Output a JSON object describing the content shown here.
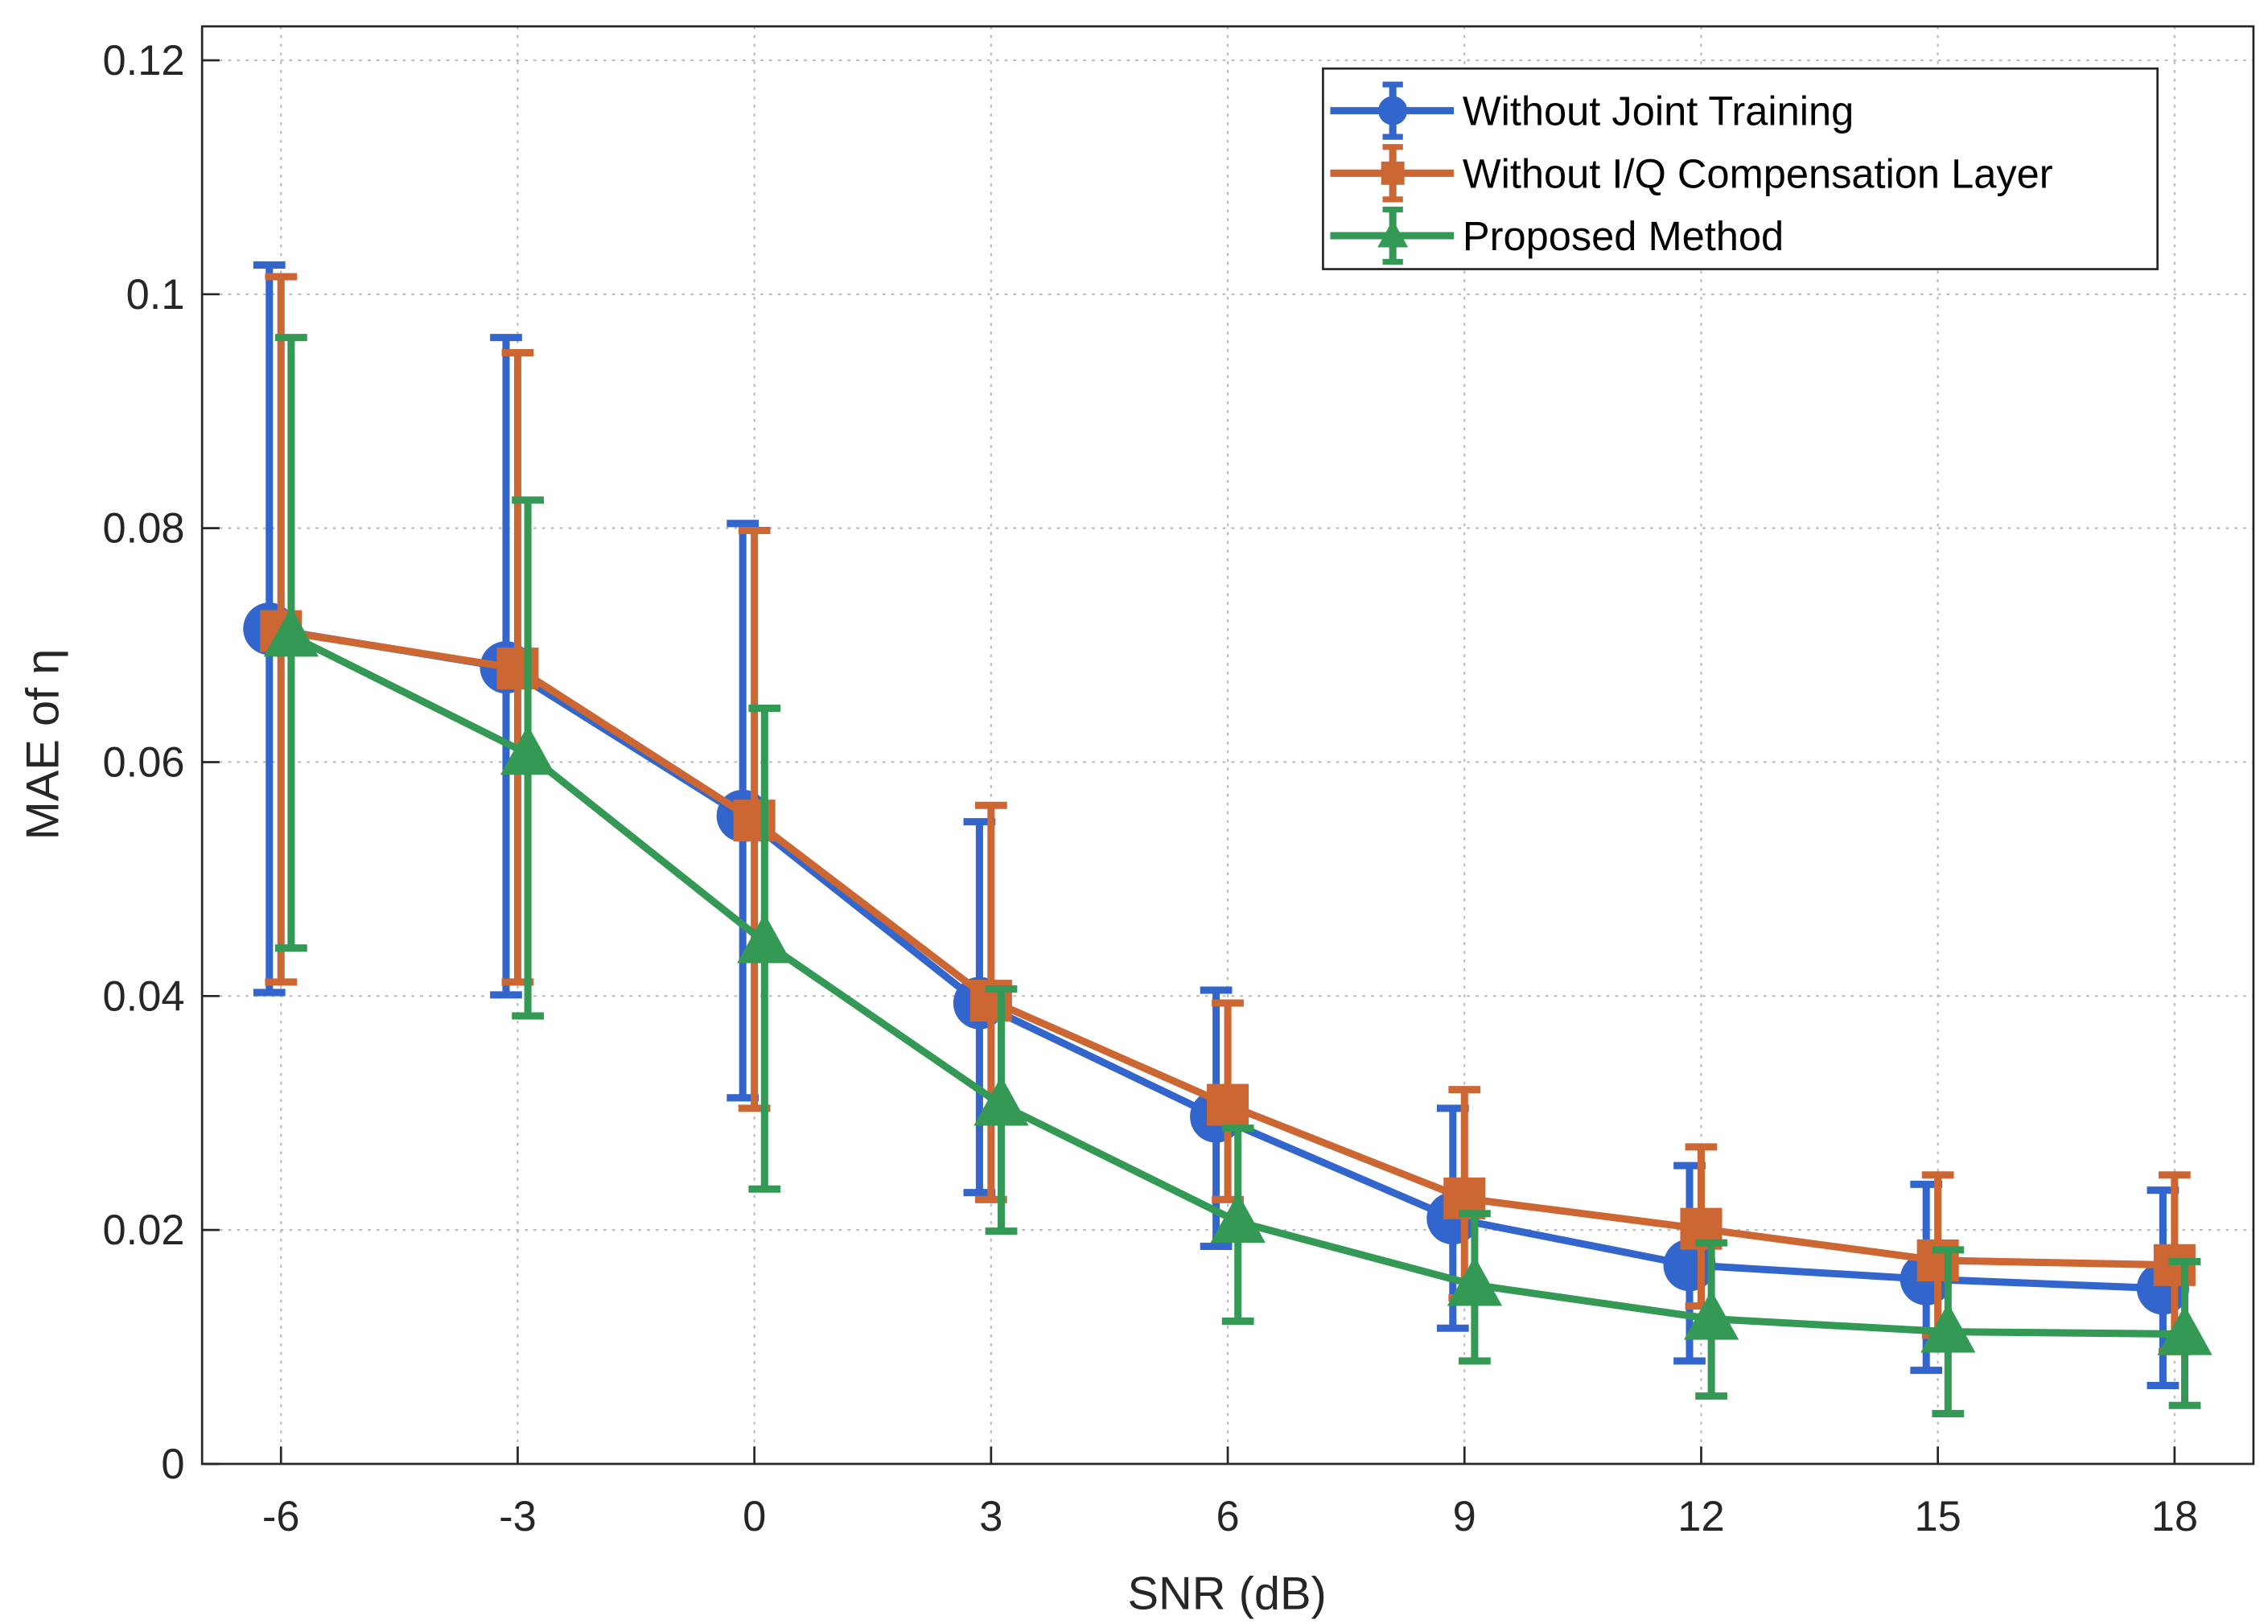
{
  "chart_data": {
    "type": "line",
    "title": "",
    "xlabel": "SNR (dB)",
    "ylabel": "MAE of η",
    "xlim": [
      -7,
      19
    ],
    "ylim": [
      0,
      0.1229
    ],
    "grid": true,
    "legend_position": "top-right",
    "x": [
      -6,
      -3,
      0,
      3,
      6,
      9,
      12,
      15,
      18
    ],
    "xticks": [
      "-6",
      "-3",
      "0",
      "3",
      "6",
      "9",
      "12",
      "15",
      "18"
    ],
    "yticks": [
      "0",
      "0.02",
      "0.04",
      "0.06",
      "0.08",
      "0.1",
      "0.12"
    ],
    "series": [
      {
        "name": "Without Joint Training",
        "color": "#3366cc",
        "marker": "circle",
        "values": [
          0.0714,
          0.0681,
          0.0554,
          0.0394,
          0.0297,
          0.021,
          0.017,
          0.0158,
          0.015
        ],
        "err_high": [
          0.1025,
          0.0963,
          0.0804,
          0.0549,
          0.0405,
          0.0304,
          0.0255,
          0.0239,
          0.0234
        ],
        "err_low": [
          0.0403,
          0.0401,
          0.0313,
          0.0232,
          0.0186,
          0.0116,
          0.0088,
          0.008,
          0.0067
        ]
      },
      {
        "name": "Without I/Q Compensation Layer",
        "color": "#cc6633",
        "marker": "square",
        "values": [
          0.0712,
          0.068,
          0.055,
          0.0396,
          0.0307,
          0.0227,
          0.0201,
          0.0174,
          0.017
        ],
        "err_high": [
          0.1015,
          0.095,
          0.0798,
          0.0563,
          0.0394,
          0.032,
          0.0271,
          0.0247,
          0.0247
        ],
        "err_low": [
          0.0412,
          0.0412,
          0.0304,
          0.0226,
          0.0226,
          0.0142,
          0.0135,
          0.011,
          0.0096
        ]
      },
      {
        "name": "Proposed Method",
        "color": "#339955",
        "marker": "triangle",
        "values": [
          0.0708,
          0.0607,
          0.0446,
          0.0307,
          0.0207,
          0.0153,
          0.0124,
          0.0113,
          0.0111
        ],
        "err_high": [
          0.0963,
          0.0824,
          0.0646,
          0.0406,
          0.0287,
          0.0214,
          0.0189,
          0.0183,
          0.0173
        ],
        "err_low": [
          0.0441,
          0.0383,
          0.0235,
          0.0199,
          0.0122,
          0.0088,
          0.0058,
          0.0043,
          0.005
        ]
      }
    ]
  }
}
